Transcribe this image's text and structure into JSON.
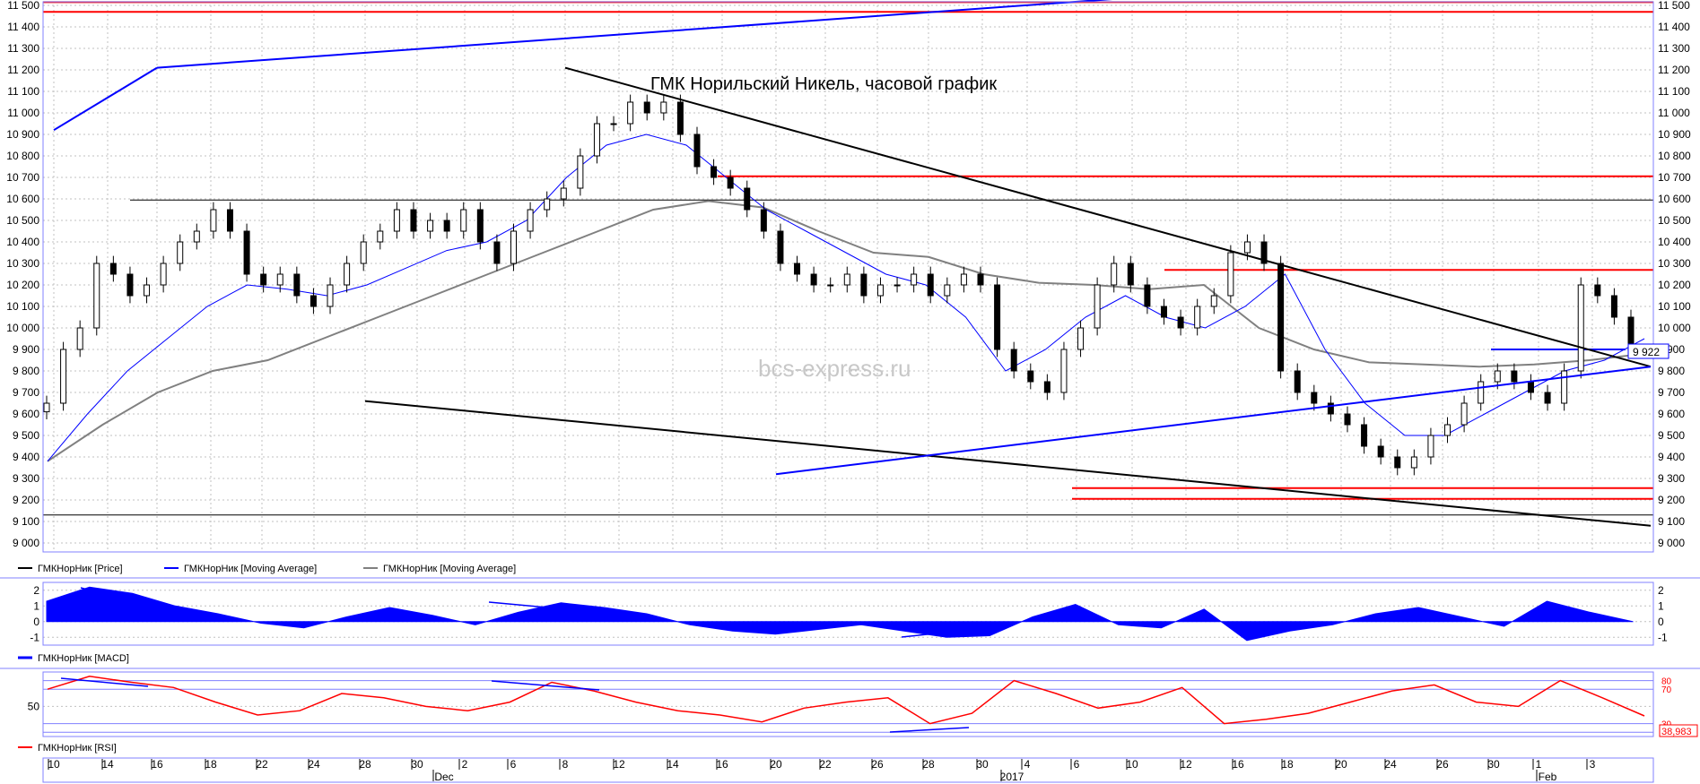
{
  "title": "ГМК Норильский Никель, часовой график",
  "watermark": "bcs-express.ru",
  "legend": {
    "price": "ГМКНорНик [Price]",
    "ma_fast": "ГМКНорНик [Moving Average]",
    "ma_slow": "ГМКНорНик [Moving Average]",
    "macd": "ГМКНорНик [MACD]",
    "rsi": "ГМКНорНик [RSI]"
  },
  "colors": {
    "price": "#000000",
    "ma_fast": "#0000ff",
    "ma_slow": "#808080",
    "macd": "#0000ff",
    "rsi": "#ff0000",
    "grid": "#c0c0c0",
    "frame": "#8080ff",
    "level_red": "#ff0000",
    "trend_blue": "#0000ff",
    "trend_black": "#000000"
  },
  "last_price_label": "9 922",
  "rsi_last_label": "38,983",
  "chart_data": [
    {
      "type": "candlestick",
      "panel": "price",
      "title": "ГМК Норильский Никель, часовой график",
      "ylim": [
        9000,
        11500
      ],
      "y_ticks": [
        9000,
        9100,
        9200,
        9300,
        9400,
        9500,
        9600,
        9700,
        9800,
        9900,
        10000,
        10100,
        10200,
        10300,
        10400,
        10500,
        10600,
        10700,
        10800,
        10900,
        11000,
        11100,
        11200,
        11300,
        11400,
        11500
      ],
      "y_tick_labels": [
        "9 000",
        "9 100",
        "9 200",
        "9 300",
        "9 400",
        "9 500",
        "9 600",
        "9 700",
        "9 800",
        "9 900",
        "10 000",
        "10 100",
        "10 200",
        "10 300",
        "10 400",
        "10 500",
        "10 600",
        "10 700",
        "10 800",
        "10 900",
        "11 000",
        "11 100",
        "11 200",
        "11 300",
        "11 400",
        "11 500"
      ],
      "x_tick_labels": [
        "10",
        "14",
        "16",
        "18",
        "22",
        "24",
        "28",
        "30",
        "2",
        "6",
        "8",
        "12",
        "14",
        "16",
        "20",
        "22",
        "26",
        "28",
        "30",
        "4",
        "6",
        "10",
        "12",
        "16",
        "18",
        "20",
        "24",
        "26",
        "30",
        "1",
        "3"
      ],
      "x_month_labels": [
        "Dec",
        "2017",
        "Feb"
      ],
      "series": [
        {
          "name": "ГМКНорНик [Price]",
          "style": "candles",
          "values": [
            9650,
            9900,
            10000,
            10300,
            10250,
            10150,
            10200,
            10300,
            10400,
            10450,
            10550,
            10450,
            10250,
            10200,
            10250,
            10150,
            10100,
            10200,
            10300,
            10400,
            10450,
            10550,
            10450,
            10500,
            10450,
            10550,
            10400,
            10300,
            10450,
            10550,
            10600,
            10650,
            10800,
            10950,
            10950,
            11050,
            11000,
            11050,
            10900,
            10750,
            10700,
            10650,
            10550,
            10450,
            10300,
            10250,
            10200,
            10200,
            10250,
            10150,
            10200,
            10200,
            10250,
            10150,
            10200,
            10250,
            10200,
            9900,
            9800,
            9750,
            9700,
            9900,
            10000,
            10200,
            10300,
            10200,
            10100,
            10050,
            10000,
            10100,
            10150,
            10350,
            10400,
            10300,
            9800,
            9700,
            9650,
            9600,
            9550,
            9450,
            9400,
            9350,
            9400,
            9500,
            9550,
            9650,
            9750,
            9800,
            9750,
            9700,
            9650,
            9800,
            10200,
            10150,
            10050,
            9922
          ]
        },
        {
          "name": "ГМКНорНик [Moving Average]",
          "style": "line",
          "values": [
            9380,
            9600,
            9800,
            9950,
            10100,
            10200,
            10180,
            10150,
            10200,
            10280,
            10360,
            10400,
            10500,
            10700,
            10850,
            10900,
            10850,
            10700,
            10550,
            10450,
            10350,
            10250,
            10200,
            10050,
            9800,
            9900,
            10050,
            10150,
            10050,
            10000,
            10100,
            10250,
            9900,
            9650,
            9500,
            9500,
            9600,
            9700,
            9800,
            9850,
            9950
          ]
        },
        {
          "name": "ГМКНорНик [Moving Average]",
          "style": "line",
          "values": [
            9380,
            9550,
            9700,
            9800,
            9850,
            9950,
            10050,
            10150,
            10250,
            10350,
            10450,
            10550,
            10590,
            10560,
            10450,
            10350,
            10330,
            10250,
            10210,
            10200,
            10180,
            10200,
            10000,
            9900,
            9840,
            9830,
            9820,
            9830,
            9850,
            9880
          ]
        }
      ],
      "levels_red": [
        11515,
        11470,
        10705,
        10270,
        9255,
        9205
      ],
      "levels_black": [
        10595,
        9130
      ],
      "levels_blue": [
        9900
      ],
      "trend_lines": [
        {
          "color": "blue",
          "from": [
            "10",
            10920
          ],
          "to": [
            "16",
            11210
          ]
        },
        {
          "color": "blue",
          "from": [
            "16",
            11210
          ],
          "to": [
            "6",
            11580
          ]
        },
        {
          "color": "black",
          "from": [
            "8",
            11210
          ],
          "to": [
            "3",
            9820
          ]
        },
        {
          "color": "black",
          "from": [
            "28",
            9660
          ],
          "to": [
            "3",
            9080
          ]
        },
        {
          "color": "blue",
          "from": [
            "20",
            9320
          ],
          "to": [
            "3",
            9820
          ]
        }
      ]
    },
    {
      "type": "area",
      "panel": "macd",
      "name": "ГМКНорНик [MACD]",
      "ylim": [
        -1.5,
        2.5
      ],
      "y_ticks": [
        -1,
        0,
        1,
        2
      ],
      "values": [
        1.3,
        2.2,
        1.8,
        1.0,
        0.5,
        -0.1,
        -0.4,
        0.3,
        0.9,
        0.4,
        -0.2,
        0.6,
        1.2,
        0.9,
        0.5,
        -0.2,
        -0.6,
        -0.8,
        -0.5,
        -0.2,
        -0.6,
        -1.0,
        -0.9,
        0.3,
        1.1,
        -0.2,
        -0.4,
        0.8,
        -1.2,
        -0.6,
        -0.2,
        0.5,
        0.9,
        0.3,
        -0.3,
        1.3,
        0.6,
        0.0
      ]
    },
    {
      "type": "line",
      "panel": "rsi",
      "name": "ГМКНорНик [RSI]",
      "ylim": [
        15,
        90
      ],
      "y_ticks": [
        20,
        30,
        50,
        70,
        80
      ],
      "levels": [
        80,
        70,
        30,
        20
      ],
      "values": [
        70,
        85,
        78,
        72,
        55,
        40,
        45,
        65,
        60,
        50,
        45,
        55,
        78,
        68,
        55,
        45,
        40,
        32,
        48,
        55,
        60,
        30,
        42,
        80,
        65,
        48,
        55,
        72,
        30,
        35,
        42,
        55,
        68,
        75,
        55,
        50,
        80,
        60,
        39
      ]
    }
  ]
}
